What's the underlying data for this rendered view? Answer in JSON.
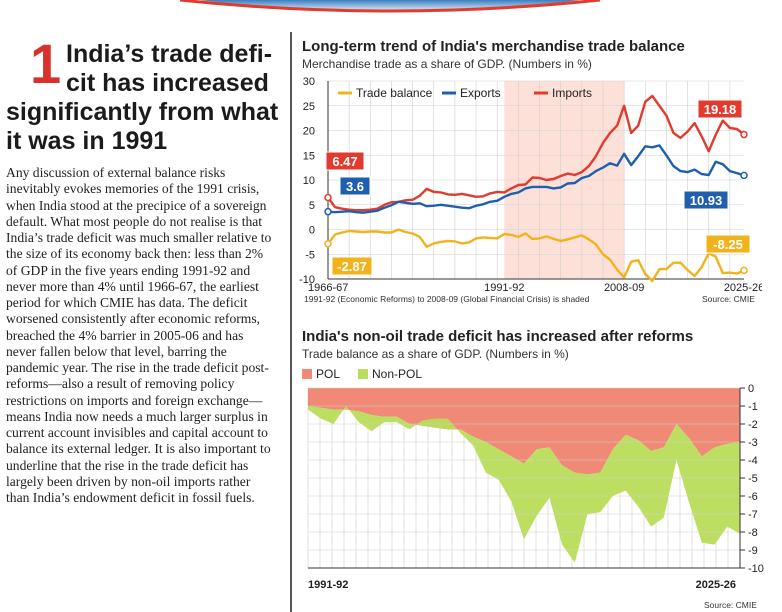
{
  "article": {
    "number": "1",
    "headline_a": "India’s trade defi-cit has increased",
    "headline_b": "significantly from what it was in 1991",
    "body": "Any discussion of external balance risks inevitably evokes memories of the 1991 crisis, when India stood at the precipice of a sovereign default. What most people do not realise is that India’s trade deficit was much smaller relative to the size of its economy back then: less than 2% of GDP in the five years ending 1991-92 and never more than 4% until 1966-67, the earliest period for which CMIE has data. The deficit worsened consistently after economic reforms, breached the 4% barrier in 2005-06 and has never fallen below that level, barring the pandemic year. The rise in the trade deficit post-reforms—also a result of removing policy restrictions on imports and foreign exchange—means India now needs a much larger surplus in current account invisibles and capital account to balance its external ledger. It is also important to underline that the rise in the trade deficit has largely been driven by non-oil imports rather than India’s endowment deficit in fossil fuels."
  },
  "colors": {
    "trade": "#f2b21b",
    "exports": "#1f5fae",
    "imports": "#e23b2e",
    "pol": "#f08a76",
    "nonpol": "#b8dd5a",
    "shade": "#fde1d8",
    "grid": "#cfcfcf"
  },
  "chart_data": [
    {
      "type": "line",
      "title": "Long-term trend of India's merchandise trade balance",
      "subtitle": "Merchandise trade as a share of GDP. (Numbers in %)",
      "note": "1991-92 (Economic Reforms) to 2008-09 (Global Financial Crisis) is shaded",
      "source": "Source: CMIE",
      "x_tick_labels": [
        "1966-67",
        "1991-92",
        "2008-09",
        "2025-26"
      ],
      "x_range": [
        1966,
        2025
      ],
      "shaded_range": [
        1991,
        2008
      ],
      "y_ticks": [
        30,
        25,
        20,
        15,
        10,
        5,
        0,
        -5,
        -10
      ],
      "ylim": [
        -10,
        30
      ],
      "legend": [
        "Trade balance",
        "Exports",
        "Imports"
      ],
      "series": [
        {
          "name": "Imports",
          "x": [
            1966,
            1967,
            1968,
            1969,
            1970,
            1971,
            1972,
            1973,
            1974,
            1975,
            1976,
            1977,
            1978,
            1979,
            1980,
            1981,
            1982,
            1983,
            1984,
            1985,
            1986,
            1987,
            1988,
            1989,
            1990,
            1991,
            1992,
            1993,
            1994,
            1995,
            1996,
            1997,
            1998,
            1999,
            2000,
            2001,
            2002,
            2003,
            2004,
            2005,
            2006,
            2007,
            2008,
            2009,
            2010,
            2011,
            2012,
            2013,
            2014,
            2015,
            2016,
            2017,
            2018,
            2019,
            2020,
            2021,
            2022,
            2023,
            2024,
            2025
          ],
          "y": [
            6.47,
            4.5,
            4.2,
            4.0,
            3.9,
            3.9,
            4.0,
            4.2,
            5.0,
            5.5,
            5.6,
            5.9,
            6.0,
            6.8,
            8.2,
            7.6,
            7.5,
            7.1,
            7.0,
            7.2,
            6.9,
            6.6,
            6.7,
            7.3,
            7.6,
            7.5,
            8.3,
            9.0,
            9.1,
            10.5,
            10.4,
            10.0,
            10.2,
            10.8,
            11.3,
            11.0,
            11.6,
            12.8,
            14.8,
            17.5,
            19.5,
            21.0,
            25.0,
            19.5,
            21.0,
            25.8,
            27.0,
            25.0,
            23.0,
            19.5,
            18.5,
            19.8,
            21.5,
            18.8,
            15.8,
            19.2,
            22.0,
            20.5,
            20.3,
            19.18
          ]
        },
        {
          "name": "Exports",
          "x": [
            1966,
            1967,
            1968,
            1969,
            1970,
            1971,
            1972,
            1973,
            1974,
            1975,
            1976,
            1977,
            1978,
            1979,
            1980,
            1981,
            1982,
            1983,
            1984,
            1985,
            1986,
            1987,
            1988,
            1989,
            1990,
            1991,
            1992,
            1993,
            1994,
            1995,
            1996,
            1997,
            1998,
            1999,
            2000,
            2001,
            2002,
            2003,
            2004,
            2005,
            2006,
            2007,
            2008,
            2009,
            2010,
            2011,
            2012,
            2013,
            2014,
            2015,
            2016,
            2017,
            2018,
            2019,
            2020,
            2021,
            2022,
            2023,
            2024,
            2025
          ],
          "y": [
            3.6,
            3.5,
            3.6,
            3.7,
            3.5,
            3.4,
            3.6,
            3.8,
            4.4,
            4.9,
            5.6,
            5.4,
            5.2,
            5.3,
            4.7,
            4.8,
            5.0,
            4.8,
            4.6,
            4.4,
            4.3,
            4.8,
            5.1,
            5.6,
            5.8,
            6.6,
            7.2,
            7.5,
            8.3,
            8.6,
            8.6,
            8.6,
            8.3,
            8.5,
            9.3,
            9.4,
            10.4,
            10.8,
            11.8,
            12.5,
            13.4,
            12.9,
            15.3,
            13.0,
            14.8,
            16.8,
            16.6,
            17.0,
            15.0,
            12.8,
            11.8,
            11.6,
            12.1,
            11.2,
            11.0,
            13.7,
            13.2,
            11.8,
            11.4,
            10.93
          ]
        },
        {
          "name": "Trade balance",
          "x": [
            1966,
            1967,
            1968,
            1969,
            1970,
            1971,
            1972,
            1973,
            1974,
            1975,
            1976,
            1977,
            1978,
            1979,
            1980,
            1981,
            1982,
            1983,
            1984,
            1985,
            1986,
            1987,
            1988,
            1989,
            1990,
            1991,
            1992,
            1993,
            1994,
            1995,
            1996,
            1997,
            1998,
            1999,
            2000,
            2001,
            2002,
            2003,
            2004,
            2005,
            2006,
            2007,
            2008,
            2009,
            2010,
            2011,
            2012,
            2013,
            2014,
            2015,
            2016,
            2017,
            2018,
            2019,
            2020,
            2021,
            2022,
            2023,
            2024,
            2025
          ],
          "y": [
            -2.87,
            -1.0,
            -0.6,
            -0.3,
            -0.4,
            -0.5,
            -0.4,
            -0.4,
            -0.6,
            -0.6,
            0.0,
            -0.5,
            -0.8,
            -1.5,
            -3.5,
            -2.8,
            -2.5,
            -2.3,
            -2.4,
            -2.8,
            -2.6,
            -1.8,
            -1.6,
            -1.7,
            -1.8,
            -0.9,
            -1.1,
            -1.5,
            -0.8,
            -1.9,
            -1.8,
            -1.4,
            -1.9,
            -2.3,
            -2.0,
            -1.6,
            -1.2,
            -2.0,
            -3.0,
            -5.0,
            -6.1,
            -8.1,
            -9.7,
            -6.5,
            -6.2,
            -9.0,
            -10.4,
            -8.0,
            -8.0,
            -6.7,
            -6.7,
            -8.2,
            -9.4,
            -7.6,
            -4.8,
            -5.5,
            -8.8,
            -8.7,
            -8.9,
            -8.25
          ]
        }
      ],
      "value_labels": [
        {
          "series": "Imports",
          "text": "6.47"
        },
        {
          "series": "Exports",
          "text": "3.6"
        },
        {
          "series": "Trade balance",
          "text": "-2.87"
        },
        {
          "series": "Imports",
          "text": "19.18"
        },
        {
          "series": "Exports",
          "text": "10.93"
        },
        {
          "series": "Trade balance",
          "text": "-8.25"
        }
      ]
    },
    {
      "type": "area",
      "title": "India's non-oil trade deficit has increased after reforms",
      "subtitle": "Trade balance as a share of GDP. (Numbers in %)",
      "source": "Source: CMIE",
      "legend": [
        "POL",
        "Non-POL"
      ],
      "x_tick_labels": [
        "1991-92",
        "2025-26"
      ],
      "x_range": [
        1991,
        2025
      ],
      "y_ticks": [
        0,
        -1,
        -2,
        -3,
        -4,
        -5,
        -6,
        -7,
        -8,
        -9,
        -10
      ],
      "ylim": [
        -10,
        0
      ],
      "series": [
        {
          "name": "POL",
          "x": [
            1991,
            1992,
            1993,
            1994,
            1995,
            1996,
            1997,
            1998,
            1999,
            2000,
            2001,
            2002,
            2003,
            2004,
            2005,
            2006,
            2007,
            2008,
            2009,
            2010,
            2011,
            2012,
            2013,
            2014,
            2015,
            2016,
            2017,
            2018,
            2019,
            2020,
            2021,
            2022,
            2023,
            2024,
            2025
          ],
          "y": [
            -1.0,
            -1.1,
            -1.2,
            -1.2,
            -1.3,
            -1.5,
            -1.6,
            -1.6,
            -2.0,
            -2.1,
            -2.2,
            -2.3,
            -2.3,
            -2.7,
            -3.0,
            -3.4,
            -3.8,
            -4.2,
            -3.4,
            -3.3,
            -4.3,
            -4.7,
            -4.8,
            -4.7,
            -3.4,
            -2.6,
            -2.9,
            -3.5,
            -3.3,
            -2.0,
            -2.8,
            -3.8,
            -3.3,
            -3.1,
            -3.0
          ]
        },
        {
          "name": "Non-POL",
          "x": [
            1991,
            1992,
            1993,
            1994,
            1995,
            1996,
            1997,
            1998,
            1999,
            2000,
            2001,
            2002,
            2003,
            2004,
            2005,
            2006,
            2007,
            2008,
            2009,
            2010,
            2011,
            2012,
            2013,
            2014,
            2015,
            2016,
            2017,
            2018,
            2019,
            2020,
            2021,
            2022,
            2023,
            2024,
            2025
          ],
          "y": [
            -0.2,
            -0.6,
            -0.8,
            0.2,
            -0.6,
            -0.9,
            -0.3,
            -0.3,
            -0.3,
            0.3,
            0.5,
            0.6,
            -0.2,
            -0.5,
            -1.7,
            -1.7,
            -2.5,
            -4.2,
            -3.7,
            -2.8,
            -4.4,
            -5.0,
            -2.2,
            -2.2,
            -2.6,
            -3.1,
            -3.7,
            -4.2,
            -3.9,
            -2.0,
            -3.6,
            -4.8,
            -5.4,
            -4.6,
            -5.1
          ]
        }
      ]
    }
  ]
}
